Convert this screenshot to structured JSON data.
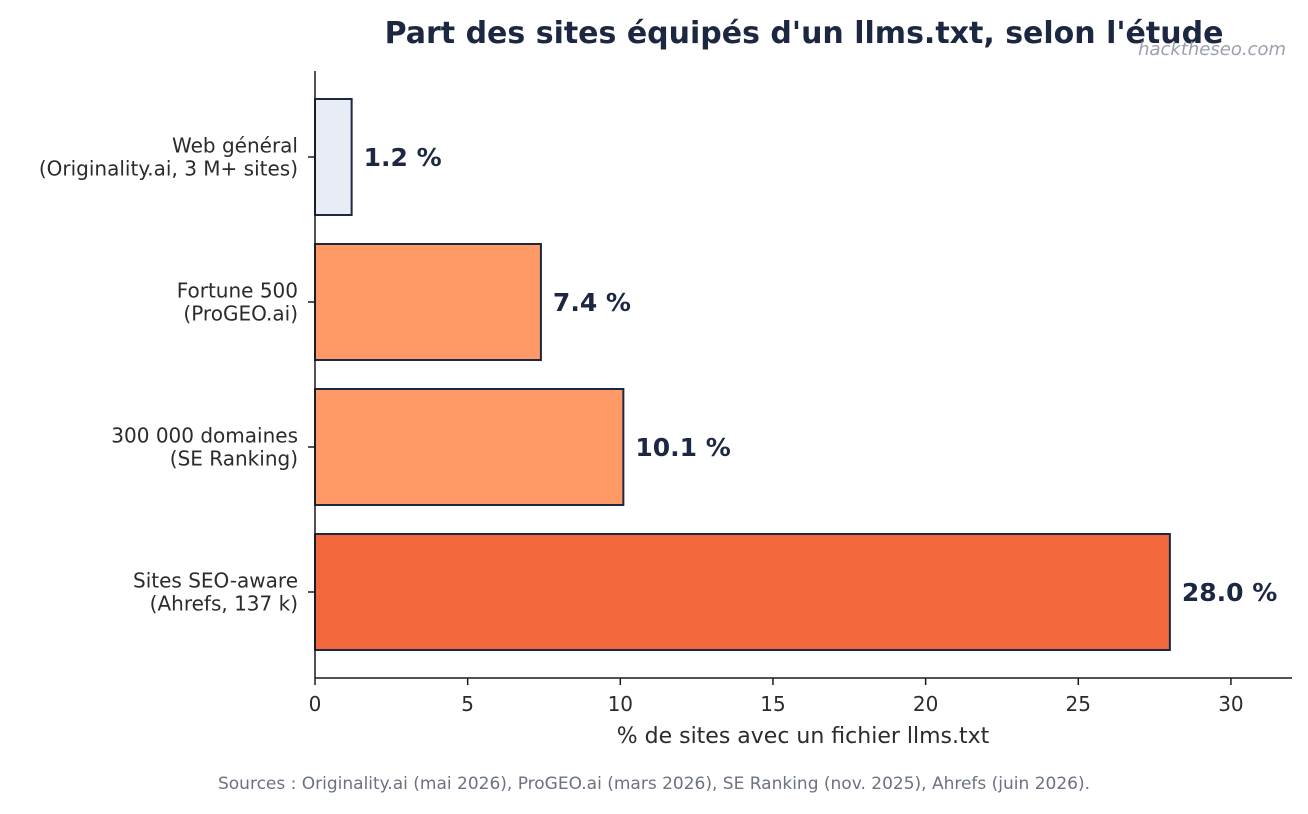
{
  "chart_data": {
    "type": "bar",
    "orientation": "horizontal",
    "title": "Part des sites équipés d'un llms.txt, selon l'étude",
    "watermark": "hacktheseo.com",
    "xlabel": "% de sites avec un fichier llms.txt",
    "ylabel": "",
    "xlim": [
      0,
      32
    ],
    "xticks": [
      0,
      5,
      10,
      15,
      20,
      25,
      30
    ],
    "grid": false,
    "categories": [
      [
        "Web général",
        "(Originality.ai, 3 M+ sites)"
      ],
      [
        "Fortune 500",
        "(ProGEO.ai)"
      ],
      [
        "300 000 domaines",
        "(SE Ranking)"
      ],
      [
        "Sites SEO-aware",
        "(Ahrefs, 137 k)"
      ]
    ],
    "values": [
      1.2,
      7.4,
      10.1,
      28.0
    ],
    "value_labels": [
      "1.2 %",
      "7.4 %",
      "10.1 %",
      "28.0 %"
    ],
    "bar_colors": [
      "#e8ecf4",
      "#ff9966",
      "#ff9966",
      "#f2683c"
    ],
    "edge_color": "#1c2742",
    "source_note": "Sources : Originality.ai (mai 2026), ProGEO.ai (mars 2026), SE Ranking (nov. 2025), Ahrefs (juin 2026)."
  },
  "colors": {
    "title": "#1c2742",
    "axis": "#1a1a1a",
    "tick_label": "#2b2b2b",
    "value_label": "#1c2742",
    "watermark": "#9aa1ad",
    "source": "#6b7280"
  }
}
